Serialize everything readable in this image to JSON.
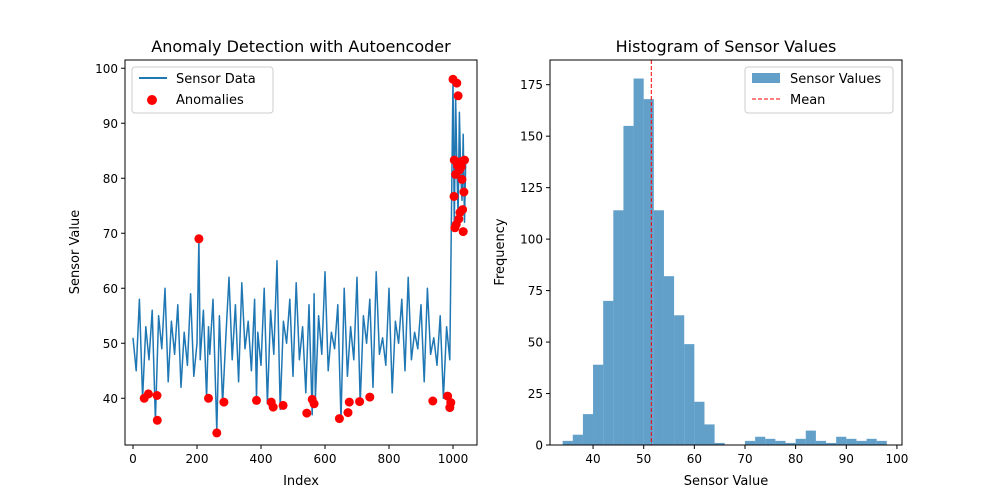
{
  "chart_data": [
    {
      "type": "line",
      "title": "Anomaly Detection with Autoencoder",
      "xlabel": "Index",
      "ylabel": "Sensor Value",
      "xlim": [
        -25,
        1075
      ],
      "ylim": [
        31.5,
        101.5
      ],
      "xticks": [
        0,
        200,
        400,
        600,
        800,
        1000
      ],
      "yticks": [
        40,
        50,
        60,
        70,
        80,
        90,
        100
      ],
      "grid": false,
      "legend": {
        "placement": "top-left",
        "entries": [
          "Sensor Data",
          "Anomalies"
        ]
      },
      "series": [
        {
          "name": "Sensor Data",
          "kind": "line",
          "color": "#1f77b4",
          "x": [
            0,
            10,
            20,
            30,
            40,
            50,
            60,
            70,
            80,
            90,
            100,
            110,
            120,
            130,
            140,
            150,
            160,
            170,
            180,
            190,
            200,
            206,
            210,
            220,
            230,
            236,
            240,
            250,
            262,
            270,
            280,
            290,
            300,
            310,
            320,
            330,
            340,
            350,
            360,
            370,
            380,
            386,
            390,
            400,
            410,
            420,
            430,
            440,
            450,
            460,
            470,
            480,
            490,
            500,
            510,
            520,
            530,
            540,
            550,
            560,
            566,
            570,
            580,
            590,
            600,
            610,
            620,
            630,
            640,
            650,
            660,
            670,
            680,
            690,
            700,
            710,
            720,
            730,
            740,
            750,
            760,
            770,
            780,
            790,
            800,
            810,
            820,
            830,
            840,
            850,
            860,
            870,
            880,
            890,
            900,
            910,
            920,
            930,
            940,
            950,
            960,
            970,
            980,
            990,
            1000,
            1004,
            1008,
            1012,
            1016,
            1020,
            1024,
            1028,
            1032,
            1036,
            1040
          ],
          "y": [
            51,
            45,
            58,
            40,
            53,
            47,
            56,
            36,
            55,
            49,
            60,
            43,
            54,
            48,
            57,
            42,
            52,
            46,
            59,
            44,
            50,
            69,
            47,
            56,
            40,
            53,
            48,
            58,
            34,
            55,
            39,
            51,
            62,
            47,
            57,
            43,
            61,
            49,
            54,
            45,
            58,
            40,
            52,
            46,
            60,
            39,
            56,
            48,
            65,
            38,
            54,
            50,
            58,
            44,
            61,
            47,
            53,
            41,
            57,
            37,
            59,
            40,
            55,
            48,
            63,
            45,
            52,
            49,
            57,
            36,
            60,
            44,
            53,
            47,
            62,
            39,
            55,
            50,
            58,
            42,
            63,
            48,
            51,
            46,
            60,
            41,
            54,
            50,
            58,
            45,
            62,
            47,
            52,
            49,
            57,
            43,
            60,
            48,
            51,
            46,
            55,
            40,
            53,
            47,
            98,
            71,
            95,
            83,
            73,
            92,
            81,
            76,
            88,
            72,
            84
          ]
        },
        {
          "name": "Anomalies",
          "kind": "scatter",
          "color": "#ff0000",
          "x": [
            35,
            48,
            75,
            76,
            206,
            236,
            262,
            284,
            386,
            432,
            438,
            469,
            543,
            560,
            566,
            645,
            672,
            676,
            708,
            740,
            937,
            983,
            990,
            993,
            1000,
            1003,
            1004,
            1006,
            1008,
            1010,
            1012,
            1014,
            1016,
            1018,
            1020,
            1022,
            1024,
            1026,
            1028,
            1030,
            1032,
            1034,
            1036
          ],
          "y": [
            40.0,
            40.8,
            40.5,
            36.0,
            69.0,
            40.0,
            33.7,
            39.3,
            39.6,
            39.3,
            38.4,
            38.7,
            37.3,
            39.8,
            39.0,
            36.3,
            37.4,
            39.3,
            39.4,
            40.2,
            39.5,
            40.4,
            38.3,
            39.2,
            98.0,
            76.7,
            83.3,
            71.0,
            80.7,
            71.6,
            97.3,
            82.3,
            95.0,
            72.6,
            81.5,
            73.8,
            83.0,
            82.1,
            79.8,
            74.3,
            70.3,
            77.5,
            83.3
          ]
        }
      ]
    },
    {
      "type": "bar",
      "title": "Histogram of Sensor Values",
      "xlabel": "Sensor Value",
      "ylabel": "Frequency",
      "xlim": [
        31.5,
        101.0
      ],
      "ylim": [
        0,
        187
      ],
      "xticks": [
        40,
        50,
        60,
        70,
        80,
        90,
        100
      ],
      "yticks": [
        0,
        25,
        50,
        75,
        100,
        125,
        150,
        175
      ],
      "grid": false,
      "legend": {
        "placement": "top-right",
        "entries": [
          "Sensor Values",
          "Mean"
        ]
      },
      "series": [
        {
          "name": "Sensor Values",
          "kind": "histogram",
          "color": "#1f77b4",
          "opacity": 0.7,
          "bin_edges": [
            34,
            36,
            38,
            40,
            42,
            44,
            46,
            48,
            50,
            52,
            54,
            56,
            58,
            60,
            62,
            64,
            66,
            68,
            70,
            72,
            74,
            76,
            78,
            80,
            82,
            84,
            86,
            88,
            90,
            92,
            94,
            96,
            98
          ],
          "counts": [
            2,
            5,
            15,
            39,
            70,
            114,
            155,
            178,
            168,
            114,
            82,
            63,
            49,
            21,
            10,
            1,
            0,
            0,
            2,
            4,
            3,
            2,
            1,
            3,
            7,
            2,
            1,
            4,
            3,
            2,
            3,
            2
          ]
        },
        {
          "name": "Mean",
          "kind": "vline",
          "color": "#ff0000",
          "style": "dashed",
          "x": 51.5
        }
      ]
    }
  ]
}
